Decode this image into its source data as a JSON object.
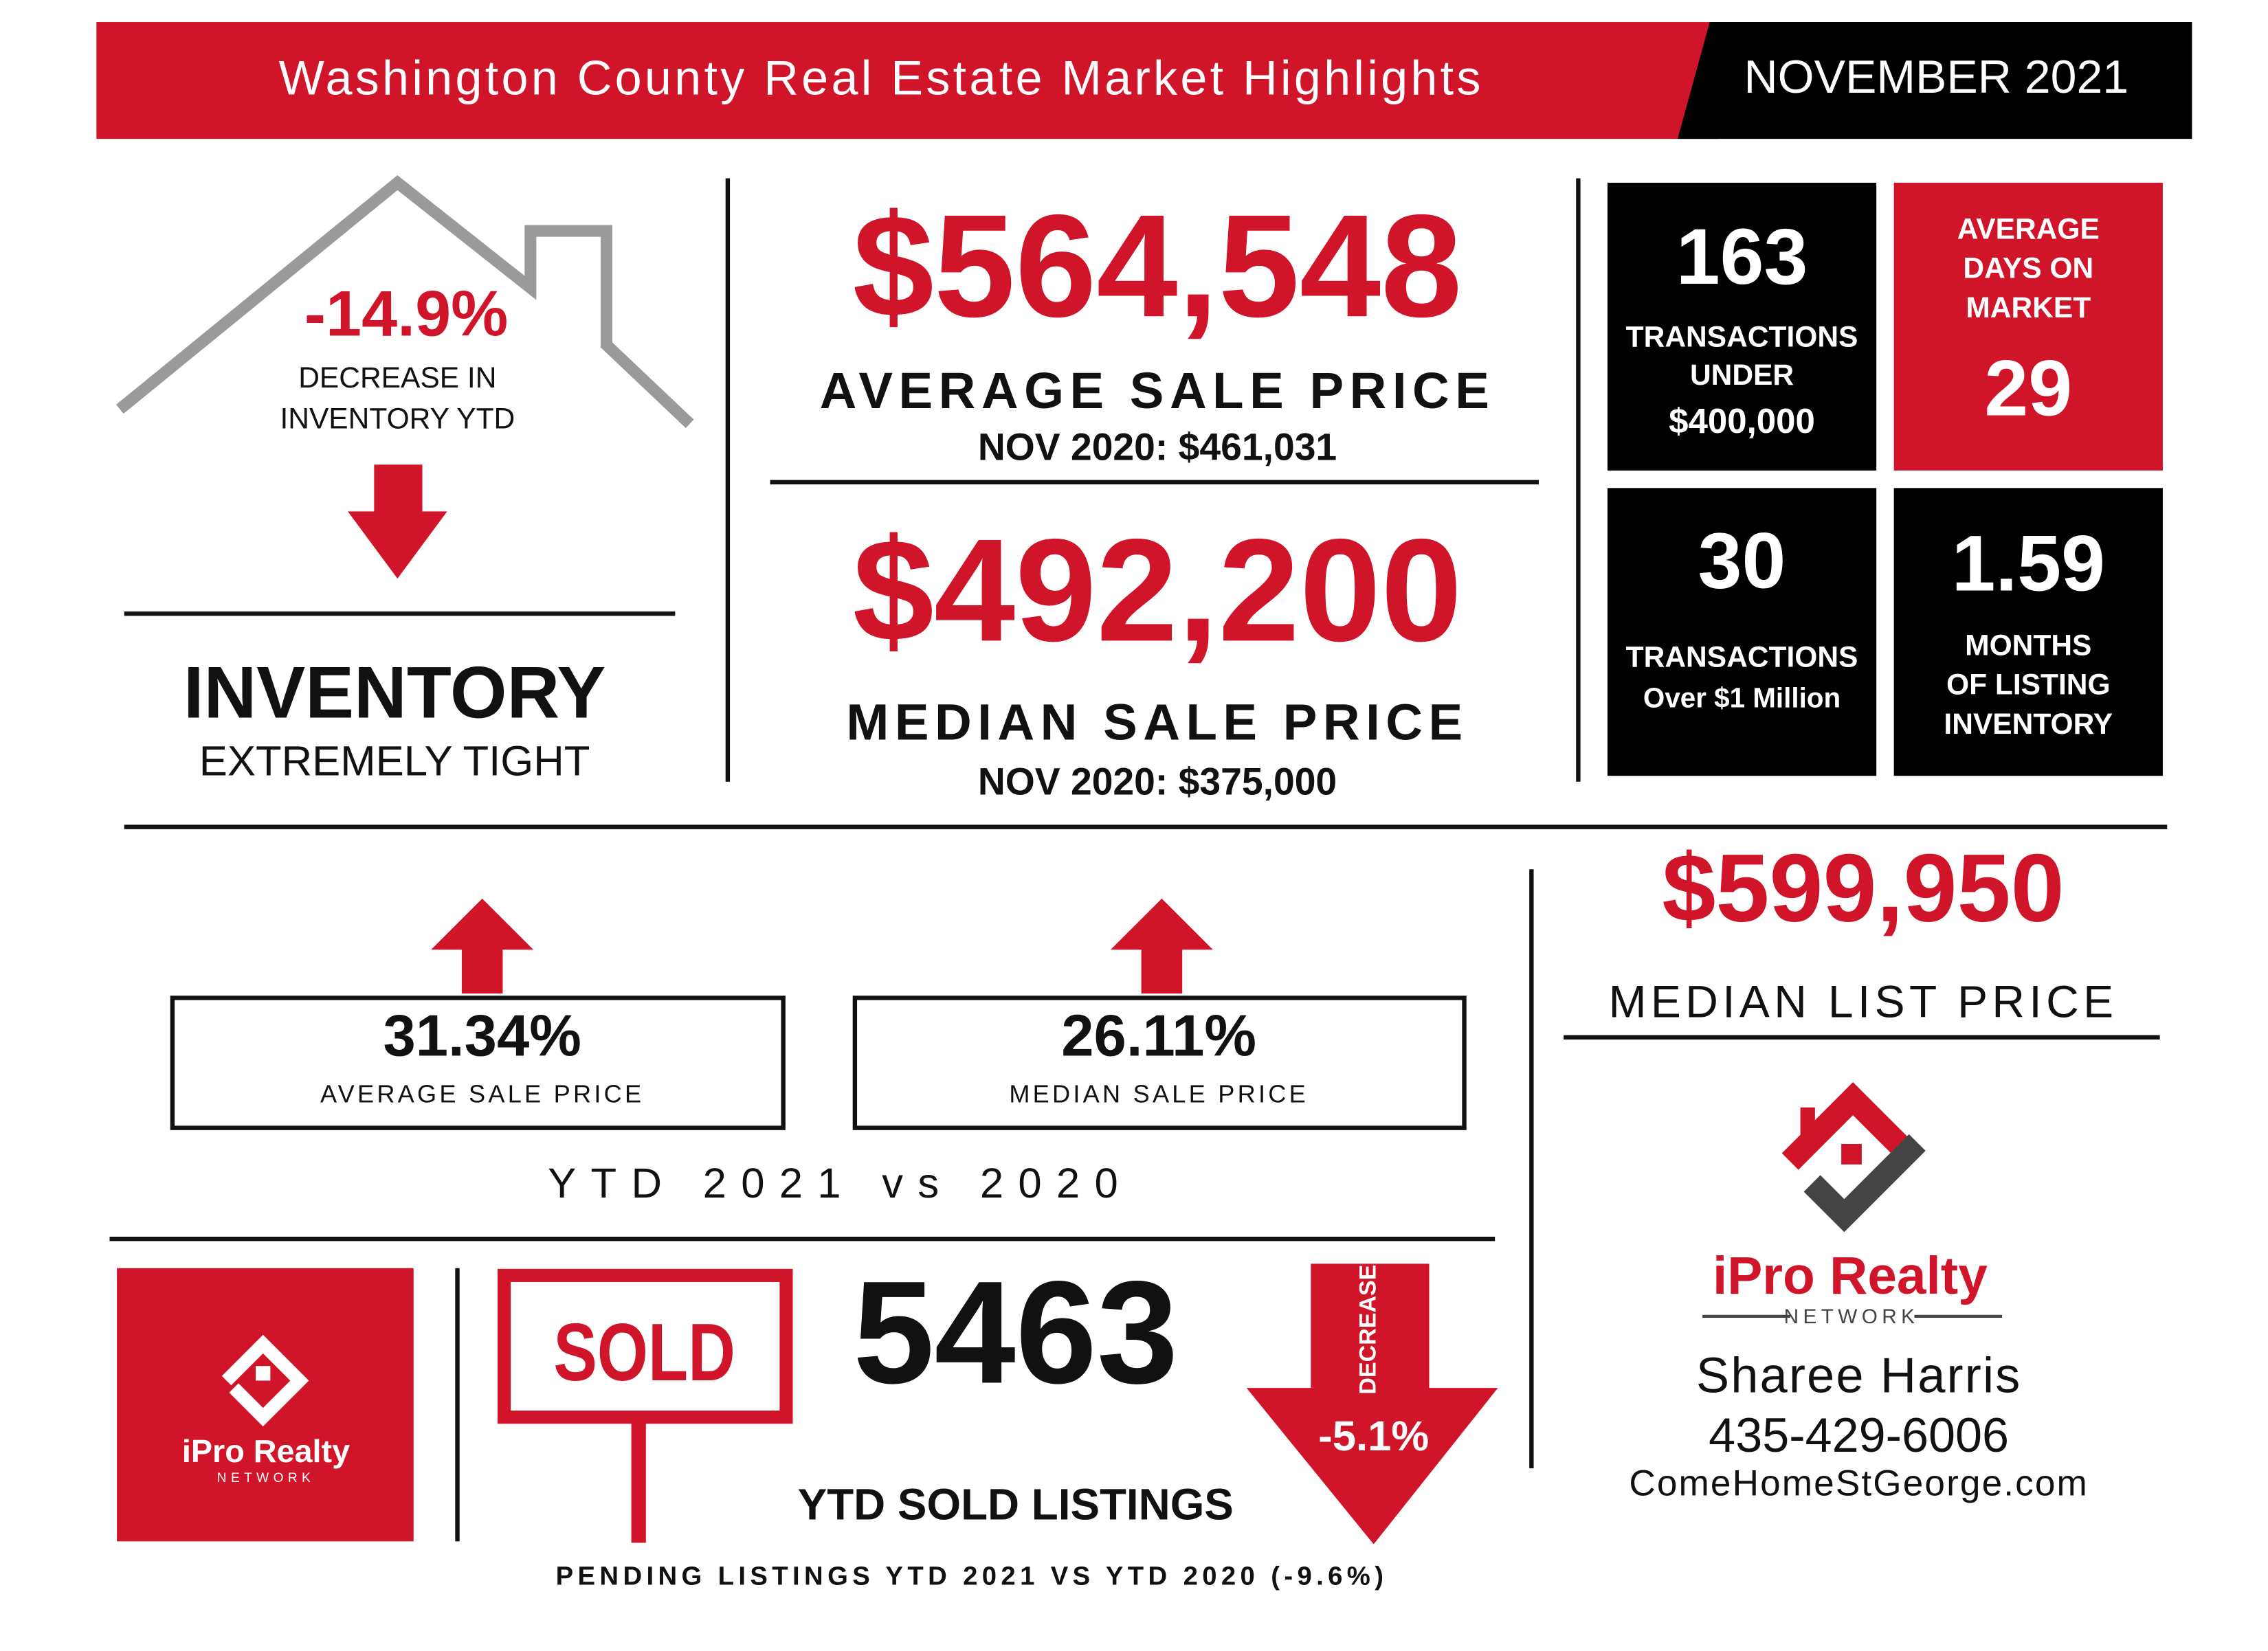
{
  "header": {
    "title": "Washington County Real Estate Market Highlights",
    "date": "NOVEMBER 2021"
  },
  "inventory": {
    "change": "-14.9%",
    "description": [
      "DECREASE IN",
      "INVENTORY YTD"
    ],
    "heading": "INVENTORY",
    "subheading": "EXTREMELY TIGHT"
  },
  "prices": [
    {
      "value": "$564,548",
      "label": "AVERAGE SALE PRICE",
      "comparison": "NOV 2020: $461,031"
    },
    {
      "value": "$492,200",
      "label": "MEDIAN SALE PRICE",
      "comparison": "NOV 2020: $375,000"
    }
  ],
  "tiles": [
    {
      "value": "163",
      "lines": [
        "TRANSACTIONS",
        "UNDER",
        "$400,000"
      ]
    },
    {
      "lines": [
        "AVERAGE",
        "DAYS ON",
        "MARKET"
      ],
      "value": "29"
    },
    {
      "value": "30",
      "lines": [
        "TRANSACTIONS",
        "Over $1 Million"
      ]
    },
    {
      "value": "1.59",
      "lines": [
        "MONTHS",
        "OF LISTING",
        "INVENTORY"
      ]
    }
  ],
  "ytd": {
    "items": [
      {
        "value": "31.34%",
        "label": "AVERAGE SALE PRICE"
      },
      {
        "value": "26.11%",
        "label": "MEDIAN SALE PRICE"
      }
    ],
    "caption": "YTD 2021 vs 2020"
  },
  "list_price": {
    "value": "$599,950",
    "label": "MEDIAN LIST PRICE"
  },
  "sold": {
    "sign": "SOLD",
    "value": "5463",
    "label": "YTD SOLD LISTINGS",
    "arrow_label": "DECREASE",
    "change": "-5.1%",
    "pending": "PENDING LISTINGS YTD 2021 VS YTD 2020 (-9.6%)"
  },
  "brand": {
    "name": "iPro Realty",
    "tagline": "NETWORK"
  },
  "contact": {
    "name": "Sharee Harris",
    "phone": "435-429-6006",
    "website": "ComeHomeStGeorge.com"
  }
}
